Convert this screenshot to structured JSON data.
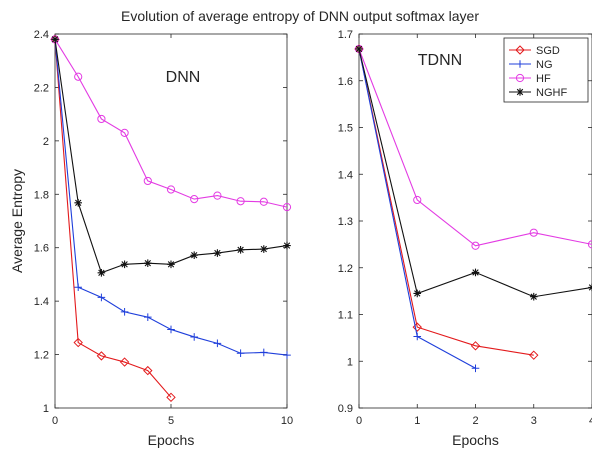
{
  "figure_title": "Evolution of average entropy of DNN output softmax layer",
  "colors": {
    "SGD": "#e31a1c",
    "NG": "#1f3fdb",
    "HF": "#e33be3",
    "NGHF": "#111111"
  },
  "chart_data": [
    {
      "type": "line",
      "panel_label": "DNN",
      "xlabel": "Epochs",
      "ylabel": "Average Entropy",
      "xlim": [
        0,
        10
      ],
      "ylim": [
        1,
        2.4
      ],
      "xticks": [
        0,
        5,
        10
      ],
      "yticks": [
        1,
        1.2,
        1.4,
        1.6,
        1.8,
        2,
        2.2,
        2.4
      ],
      "grid": false,
      "legend": null,
      "series": [
        {
          "name": "SGD",
          "marker": "diamond",
          "x": [
            0,
            1,
            2,
            3,
            4,
            5
          ],
          "y": [
            2.38,
            1.245,
            1.195,
            1.172,
            1.14,
            1.04
          ]
        },
        {
          "name": "NG",
          "marker": "plus",
          "x": [
            0,
            1,
            2,
            3,
            4,
            5,
            6,
            7,
            8,
            9,
            10
          ],
          "y": [
            2.38,
            1.452,
            1.414,
            1.36,
            1.34,
            1.294,
            1.266,
            1.242,
            1.205,
            1.208,
            1.198
          ]
        },
        {
          "name": "HF",
          "marker": "circle",
          "x": [
            0,
            1,
            2,
            3,
            4,
            5,
            6,
            7,
            8,
            9,
            10
          ],
          "y": [
            2.38,
            2.24,
            2.082,
            2.03,
            1.85,
            1.818,
            1.782,
            1.795,
            1.774,
            1.772,
            1.752
          ]
        },
        {
          "name": "NGHF",
          "marker": "star",
          "x": [
            0,
            1,
            2,
            3,
            4,
            5,
            6,
            7,
            8,
            9,
            10
          ],
          "y": [
            2.38,
            1.768,
            1.506,
            1.538,
            1.542,
            1.538,
            1.572,
            1.58,
            1.592,
            1.595,
            1.608
          ]
        }
      ]
    },
    {
      "type": "line",
      "panel_label": "TDNN",
      "xlabel": "Epochs",
      "ylabel": "",
      "xlim": [
        0,
        4
      ],
      "ylim": [
        0.9,
        1.7
      ],
      "xticks": [
        0,
        1,
        2,
        3,
        4
      ],
      "yticks": [
        0.9,
        1,
        1.1,
        1.2,
        1.3,
        1.4,
        1.5,
        1.6,
        1.7
      ],
      "grid": false,
      "legend": "top-right",
      "series": [
        {
          "name": "SGD",
          "marker": "diamond",
          "x": [
            0,
            1,
            2,
            3
          ],
          "y": [
            1.668,
            1.073,
            1.033,
            1.013
          ]
        },
        {
          "name": "NG",
          "marker": "plus",
          "x": [
            0,
            1,
            2
          ],
          "y": [
            1.668,
            1.053,
            0.985
          ]
        },
        {
          "name": "HF",
          "marker": "circle",
          "x": [
            0,
            1,
            2,
            3,
            4
          ],
          "y": [
            1.668,
            1.345,
            1.247,
            1.275,
            1.25
          ]
        },
        {
          "name": "NGHF",
          "marker": "star",
          "x": [
            0,
            1,
            2,
            3,
            4
          ],
          "y": [
            1.668,
            1.145,
            1.19,
            1.138,
            1.158
          ]
        }
      ]
    }
  ]
}
